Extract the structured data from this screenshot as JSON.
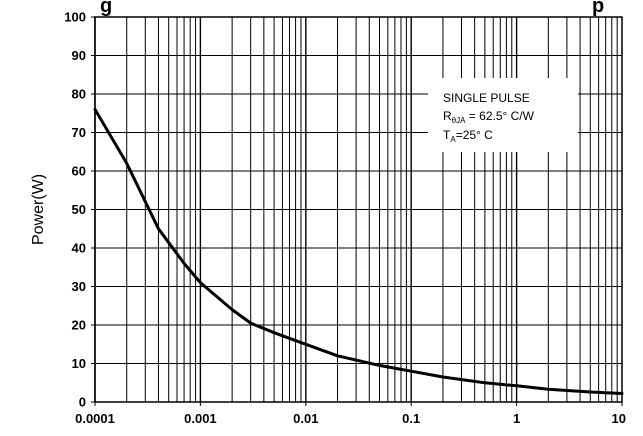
{
  "title_fragments": {
    "left": "g",
    "right": "p"
  },
  "chart_data": {
    "type": "line",
    "xscale": "log",
    "xlabel": "",
    "ylabel": "Power(W)",
    "xlim": [
      0.0001,
      10
    ],
    "ylim": [
      0,
      100
    ],
    "x_ticks": [
      "0.0001",
      "0.001",
      "0.01",
      "0.1",
      "1",
      "10"
    ],
    "y_ticks": [
      "0",
      "10",
      "20",
      "30",
      "40",
      "50",
      "60",
      "70",
      "80",
      "90",
      "100"
    ],
    "grid": true,
    "series": [
      {
        "x": [
          0.0001,
          0.0002,
          0.0004,
          0.0007,
          0.001,
          0.002,
          0.003,
          0.005,
          0.01,
          0.02,
          0.05,
          0.1,
          0.2,
          0.5,
          1,
          2,
          5,
          10
        ],
        "y": [
          76,
          62,
          45,
          36,
          31,
          24,
          20.5,
          18,
          15,
          12,
          9.5,
          8,
          6.5,
          5,
          4.2,
          3.3,
          2.6,
          2.2
        ],
        "color": "#000000"
      }
    ],
    "annotation": {
      "line1": "SINGLE PULSE",
      "line2_main": "R",
      "line2_sub": "θJA",
      "line2_rest": " = 62.5° C/W",
      "line3_main": "T",
      "line3_sub": "A",
      "line3_rest": "=25° C"
    }
  }
}
